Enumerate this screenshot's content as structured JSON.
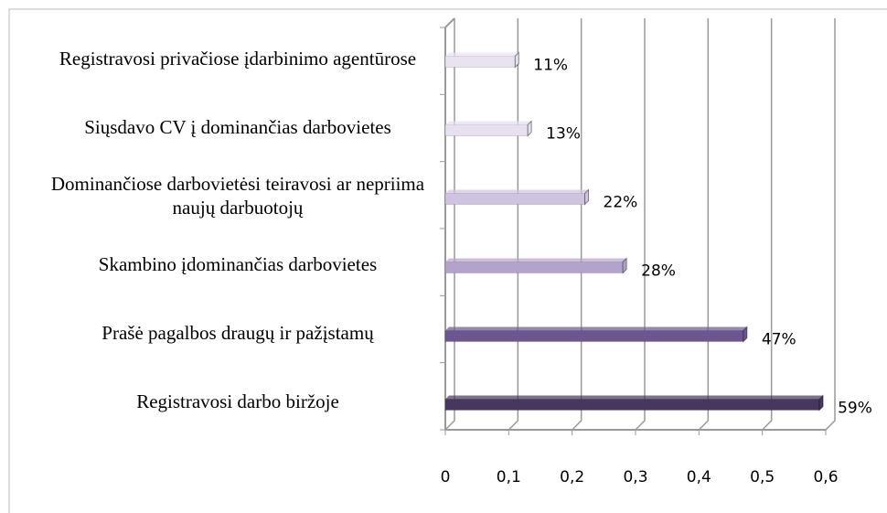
{
  "chart_data": {
    "type": "bar",
    "orientation": "horizontal",
    "categories": [
      "Registravosi privačiose įdarbinimo agentūrose",
      "Siųsdavo CV į dominančias darbovietes",
      "Dominančiose darbovietėsi teiravosi ar nepriima naujų darbuotojų",
      "Skambino įdominančias darbovietes",
      "Prašė pagalbos draugų ir pažįstamų",
      "Registravosi darbo biržoje"
    ],
    "values": [
      0.11,
      0.13,
      0.22,
      0.28,
      0.47,
      0.59
    ],
    "value_labels": [
      "11%",
      "13%",
      "22%",
      "28%",
      "47%",
      "59%"
    ],
    "colors": [
      "#e9e3f0",
      "#e6e0ef",
      "#cfc3e0",
      "#b3a3cc",
      "#6a5690",
      "#46375e"
    ],
    "xlim": [
      0,
      0.6
    ],
    "xticks": [
      0,
      {
        "value": 0.1,
        "label": "0,1"
      },
      {
        "value": 0.2,
        "label": "0,2"
      },
      {
        "value": 0.3,
        "label": "0,3"
      },
      {
        "value": 0.4,
        "label": "0,4"
      },
      {
        "value": 0.5,
        "label": "0,5"
      },
      {
        "value": 0.6,
        "label": "0,6"
      }
    ],
    "grid": true
  }
}
